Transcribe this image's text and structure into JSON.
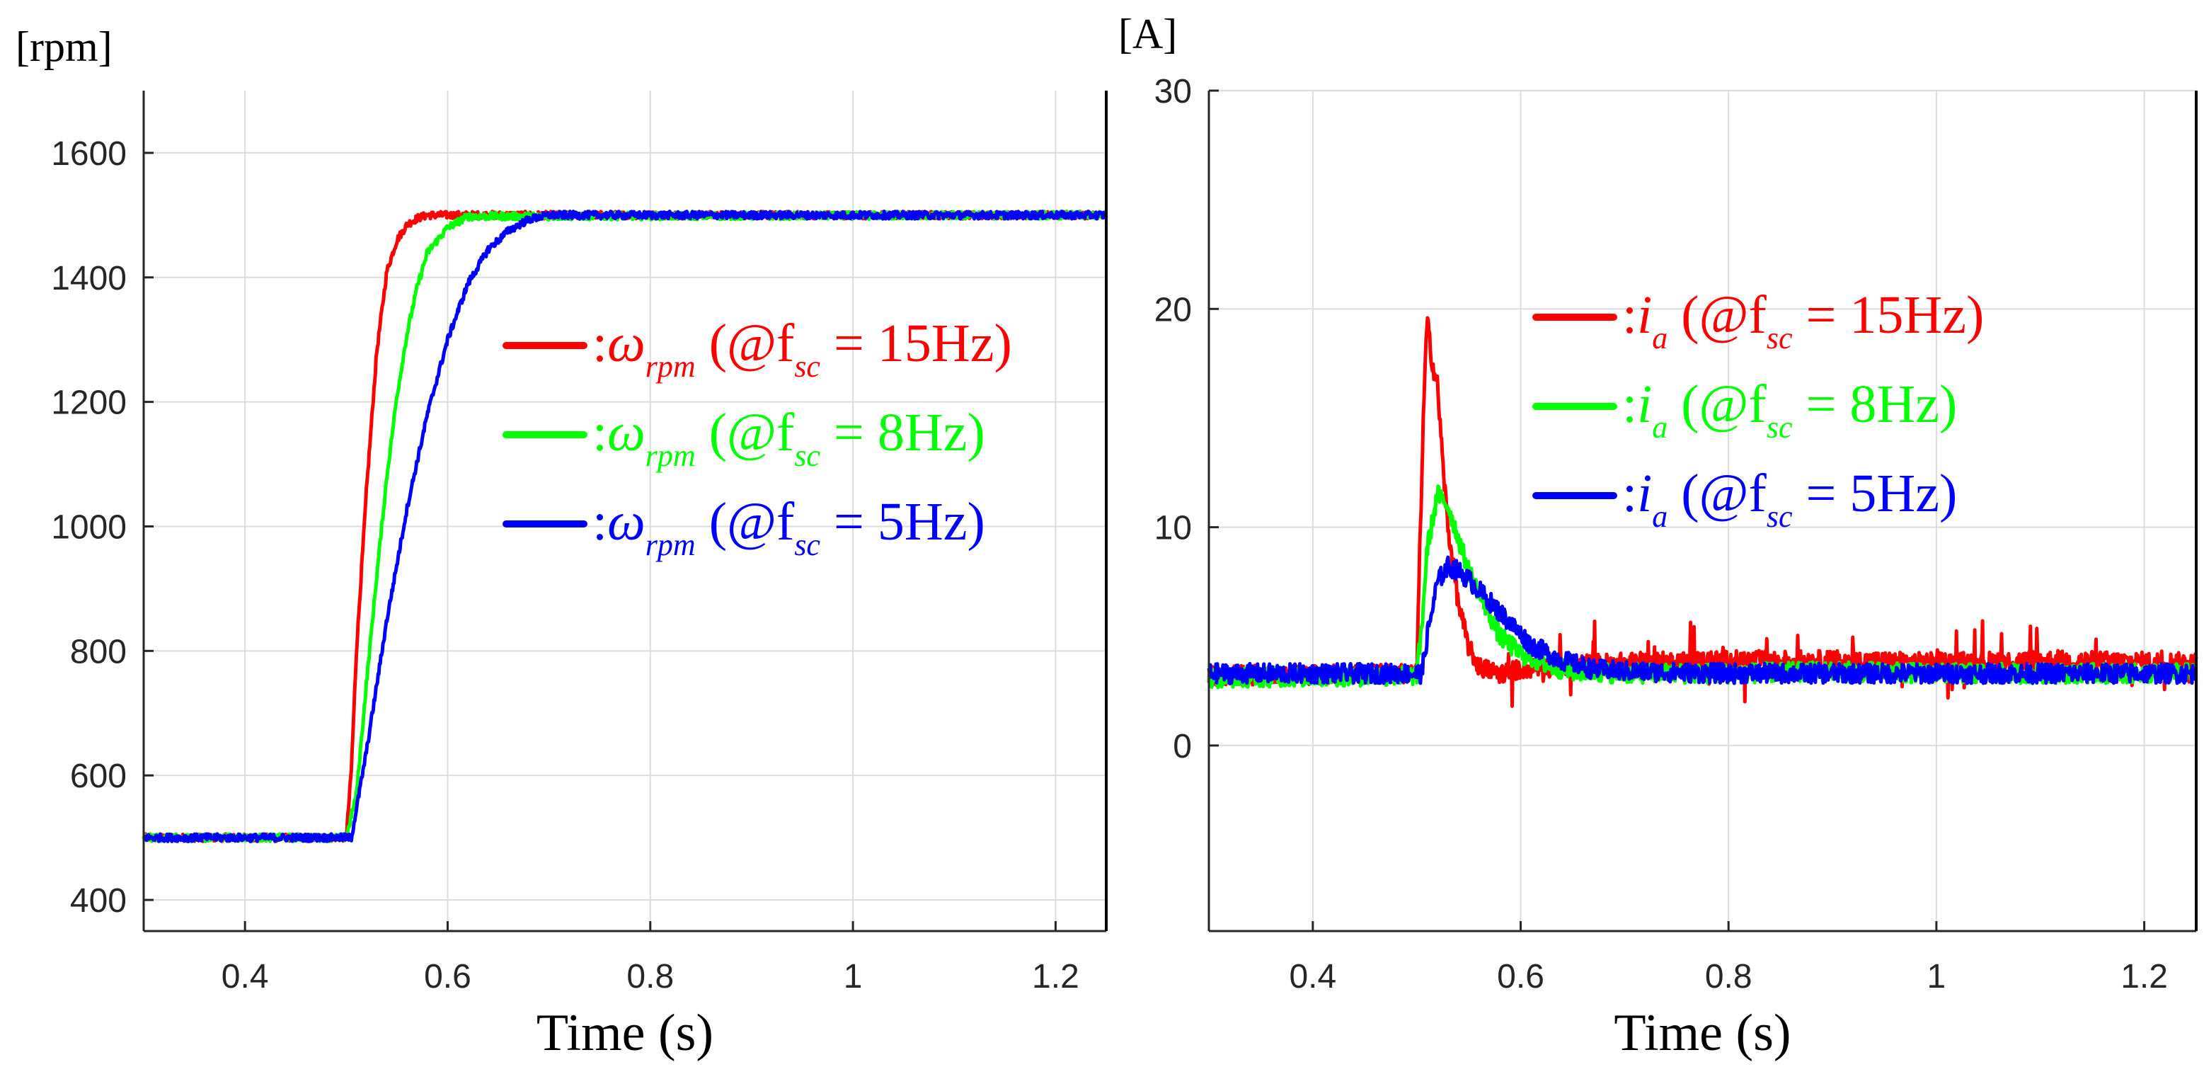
{
  "chart_data": [
    {
      "type": "line",
      "panel": "left",
      "ylabel": "[rpm]",
      "xlabel": "Time (s)",
      "xlim": [
        0.3,
        1.25
      ],
      "ylim": [
        350,
        1700
      ],
      "xticks": [
        0.4,
        0.6,
        0.8,
        1,
        1.2
      ],
      "xtick_labels": [
        "0.4",
        "0.6",
        "0.8",
        "1",
        "1.2"
      ],
      "yticks": [
        400,
        600,
        800,
        1000,
        1200,
        1400,
        1600
      ],
      "ytick_labels": [
        "400",
        "600",
        "800",
        "1000",
        "1200",
        "1400",
        "1600"
      ],
      "grid": true,
      "legend_position": "center-right",
      "series": [
        {
          "name": "ω_rpm (@f_sc = 15Hz)",
          "symbol": "ω",
          "sub": "rpm",
          "prefix": "(@f",
          "fsub": "sc",
          "rest": "= 15Hz)",
          "color": "#ff0000",
          "x": [
            0.3,
            0.5,
            0.505,
            0.51,
            0.52,
            0.53,
            0.54,
            0.55,
            0.56,
            0.57,
            0.58,
            0.6,
            1.25
          ],
          "y": [
            500,
            500,
            610,
            800,
            1060,
            1280,
            1410,
            1460,
            1485,
            1495,
            1500,
            1500,
            1500
          ]
        },
        {
          "name": "ω_rpm (@f_sc = 8Hz)",
          "symbol": "ω",
          "sub": "rpm",
          "prefix": "(@f",
          "fsub": "sc",
          "rest": "= 8Hz)",
          "color": "#00ff00",
          "x": [
            0.3,
            0.5,
            0.51,
            0.52,
            0.53,
            0.54,
            0.55,
            0.56,
            0.57,
            0.58,
            0.6,
            0.62,
            1.25
          ],
          "y": [
            500,
            500,
            570,
            750,
            920,
            1080,
            1210,
            1310,
            1385,
            1440,
            1480,
            1498,
            1500
          ]
        },
        {
          "name": "ω_rpm (@f_sc = 5Hz)",
          "symbol": "ω",
          "sub": "rpm",
          "prefix": "(@f",
          "fsub": "sc",
          "rest": "= 5Hz)",
          "color": "#0000ff",
          "x": [
            0.3,
            0.505,
            0.52,
            0.54,
            0.56,
            0.58,
            0.6,
            0.62,
            0.64,
            0.66,
            0.68,
            0.7,
            1.25
          ],
          "y": [
            500,
            500,
            640,
            850,
            1030,
            1180,
            1300,
            1390,
            1445,
            1475,
            1493,
            1500,
            1500
          ]
        }
      ]
    },
    {
      "type": "line",
      "panel": "right",
      "ylabel": "[A]",
      "xlabel": "Time (s)",
      "xlim": [
        0.3,
        1.25
      ],
      "ylim": [
        -8.5,
        30
      ],
      "xticks": [
        0.4,
        0.6,
        0.8,
        1,
        1.2
      ],
      "xtick_labels": [
        "0.4",
        "0.6",
        "0.8",
        "1",
        "1.2"
      ],
      "yticks": [
        0,
        10,
        20,
        30
      ],
      "ytick_labels": [
        "0",
        "10",
        "20",
        "30"
      ],
      "grid": true,
      "legend_position": "upper-right",
      "series": [
        {
          "name": "i_a (@f_sc = 15Hz)",
          "symbol": "i",
          "sub": "a",
          "prefix": "(@f",
          "fsub": "sc",
          "rest": "= 15Hz)",
          "color": "#ff0000",
          "x": [
            0.3,
            0.5,
            0.503,
            0.507,
            0.51,
            0.515,
            0.52,
            0.525,
            0.53,
            0.54,
            0.55,
            0.56,
            0.58,
            0.6,
            0.65,
            0.7,
            0.8,
            0.9,
            1.0,
            1.1,
            1.25
          ],
          "y": [
            3.2,
            3.3,
            9.0,
            16.0,
            19.5,
            17.5,
            16.5,
            13.0,
            10.0,
            6.5,
            4.5,
            3.6,
            3.3,
            3.5,
            3.7,
            3.8,
            3.9,
            3.9,
            3.8,
            3.9,
            3.8
          ]
        },
        {
          "name": "i_a (@f_sc = 8Hz)",
          "symbol": "i",
          "sub": "a",
          "prefix": "(@f",
          "fsub": "sc",
          "rest": "= 8Hz)",
          "color": "#00ff00",
          "x": [
            0.3,
            0.5,
            0.505,
            0.51,
            0.52,
            0.53,
            0.54,
            0.55,
            0.56,
            0.58,
            0.6,
            0.63,
            0.65,
            0.7,
            0.8,
            0.9,
            1.0,
            1.1,
            1.25
          ],
          "y": [
            3.1,
            3.2,
            5.5,
            9.0,
            11.5,
            11.0,
            9.5,
            8.0,
            7.0,
            5.0,
            4.2,
            3.6,
            3.4,
            3.3,
            3.3,
            3.4,
            3.3,
            3.3,
            3.3
          ]
        },
        {
          "name": "i_a (@f_sc = 5Hz)",
          "symbol": "i",
          "sub": "a",
          "prefix": "(@f",
          "fsub": "sc",
          "rest": "= 5Hz)",
          "color": "#0000ff",
          "x": [
            0.3,
            0.505,
            0.51,
            0.52,
            0.53,
            0.54,
            0.55,
            0.57,
            0.59,
            0.61,
            0.64,
            0.67,
            0.7,
            0.8,
            0.9,
            1.0,
            1.1,
            1.25
          ],
          "y": [
            3.3,
            3.3,
            5.0,
            7.5,
            8.2,
            8.0,
            7.6,
            6.6,
            5.6,
            4.6,
            3.9,
            3.5,
            3.4,
            3.3,
            3.3,
            3.3,
            3.3,
            3.3
          ]
        }
      ]
    }
  ]
}
